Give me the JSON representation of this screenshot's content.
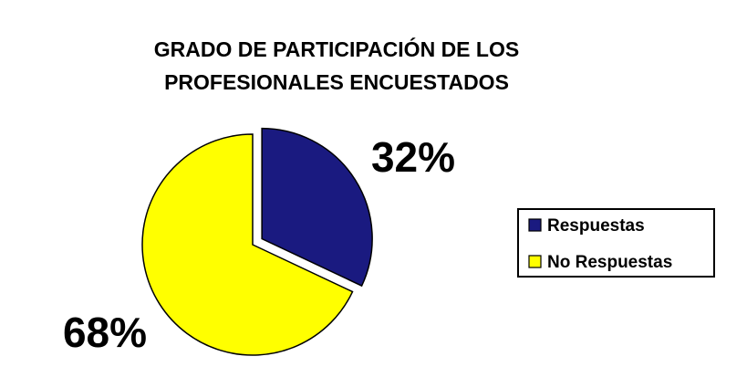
{
  "chart_data": {
    "type": "pie",
    "title_lines": [
      "GRADO DE PARTICIPACIÓN DE LOS",
      "PROFESIONALES ENCUESTADOS"
    ],
    "legend_position": "right",
    "slices": [
      {
        "label": "Respuestas",
        "value": 32,
        "display": "32%",
        "color": "#1a1a80",
        "exploded": true
      },
      {
        "label": "No Respuestas",
        "value": 68,
        "display": "68%",
        "color": "#ffff00",
        "exploded": false
      }
    ]
  }
}
